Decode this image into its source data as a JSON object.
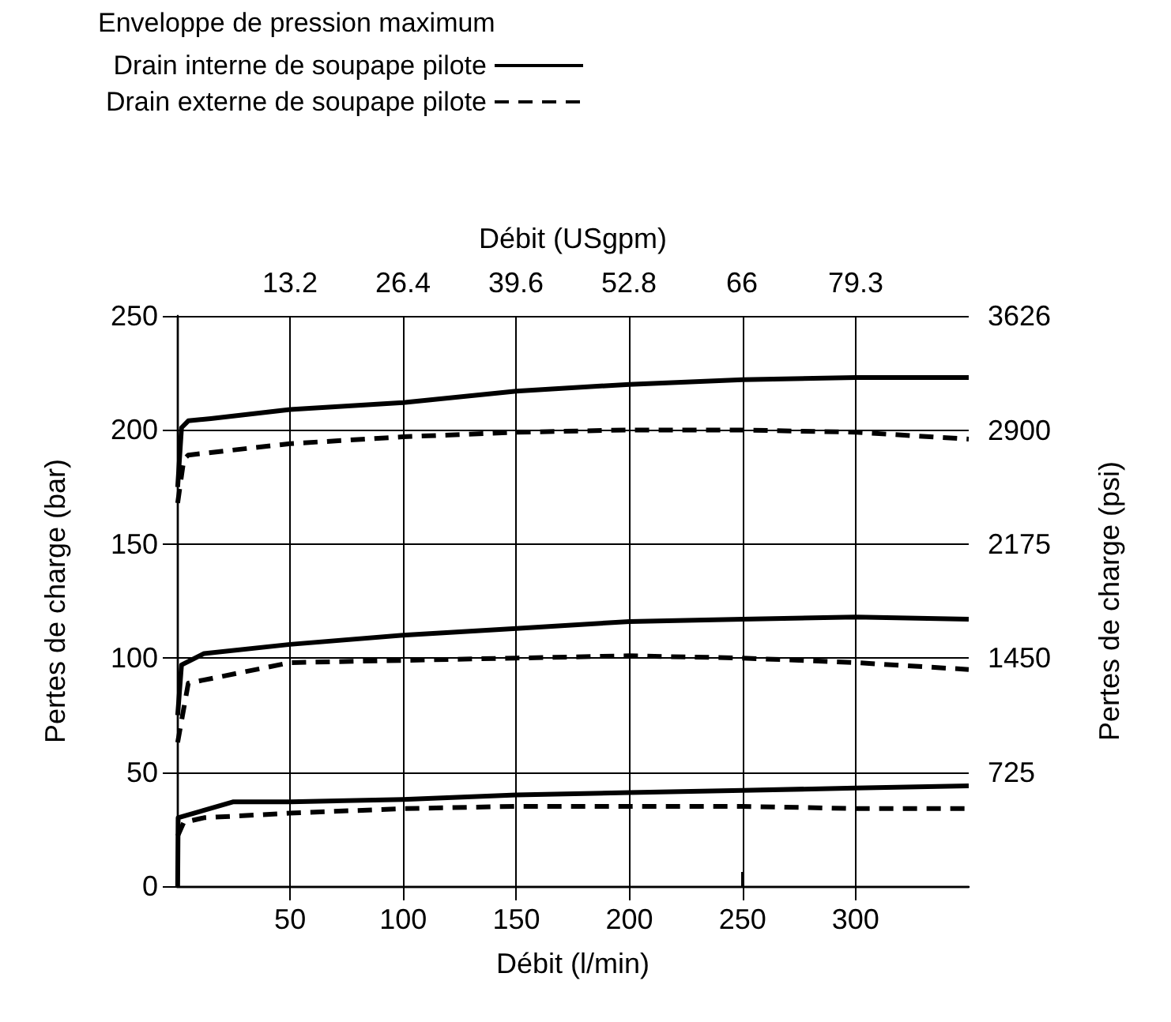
{
  "chart_data": {
    "type": "line",
    "legend_title": "Enveloppe de pression maximum",
    "xlabel": "Débit (l/min)",
    "x2label": "Débit (USgpm)",
    "ylabel": "Pertes de charge (bar)",
    "y2label": "Pertes de charge (psi)",
    "xlim": [
      0,
      350
    ],
    "xticks": [
      50,
      100,
      150,
      200,
      250,
      300
    ],
    "x2lim": [
      0,
      92.5
    ],
    "x2ticks": [
      13.2,
      26.4,
      39.6,
      52.8,
      66,
      79.3
    ],
    "ylim": [
      0,
      250
    ],
    "yticks": [
      0,
      50,
      100,
      150,
      200,
      250
    ],
    "y2lim": [
      0,
      3626
    ],
    "y2ticks": [
      725,
      1450,
      2175,
      2900,
      3626
    ],
    "grid": true,
    "legend": "top left",
    "marker": "none",
    "series": [
      {
        "name": "Drain interne de soupape pilote",
        "color": "#000000",
        "line_style": "solid",
        "x": [
          0.3,
          2,
          5,
          15,
          50,
          100,
          150,
          200,
          250,
          300,
          350
        ],
        "values": [
          175,
          201,
          204,
          205,
          209,
          212,
          217,
          220,
          222,
          223,
          223
        ]
      },
      {
        "color": "#000000",
        "line_style": "solid",
        "x": [
          0.3,
          2,
          12,
          50,
          100,
          150,
          200,
          250,
          300,
          350
        ],
        "values": [
          75,
          97,
          102,
          106,
          110,
          113,
          116,
          117,
          118,
          117
        ]
      },
      {
        "color": "#000000",
        "line_style": "solid",
        "x": [
          0.3,
          0.5,
          25,
          50,
          100,
          150,
          200,
          250,
          300,
          350
        ],
        "values": [
          0,
          30,
          37,
          37,
          38,
          40,
          41,
          42,
          43,
          44
        ]
      },
      {
        "name": "Drain externe de soupape pilote",
        "color": "#000000",
        "line_style": "dashed",
        "x": [
          0.3,
          3,
          5,
          50,
          100,
          150,
          200,
          250,
          300,
          350
        ],
        "values": [
          168,
          187,
          189,
          194,
          197,
          199,
          200,
          200,
          199,
          196
        ]
      },
      {
        "color": "#000000",
        "line_style": "dashed",
        "x": [
          0.3,
          5,
          50,
          100,
          150,
          200,
          250,
          300,
          350
        ],
        "values": [
          63,
          89,
          98,
          99,
          100,
          101,
          100,
          98,
          95
        ]
      },
      {
        "color": "#000000",
        "line_style": "dashed",
        "x": [
          0.3,
          3,
          12,
          50,
          100,
          150,
          200,
          250,
          300,
          350
        ],
        "values": [
          22,
          28,
          30,
          32,
          34,
          35,
          35,
          35,
          34,
          34
        ]
      }
    ]
  }
}
